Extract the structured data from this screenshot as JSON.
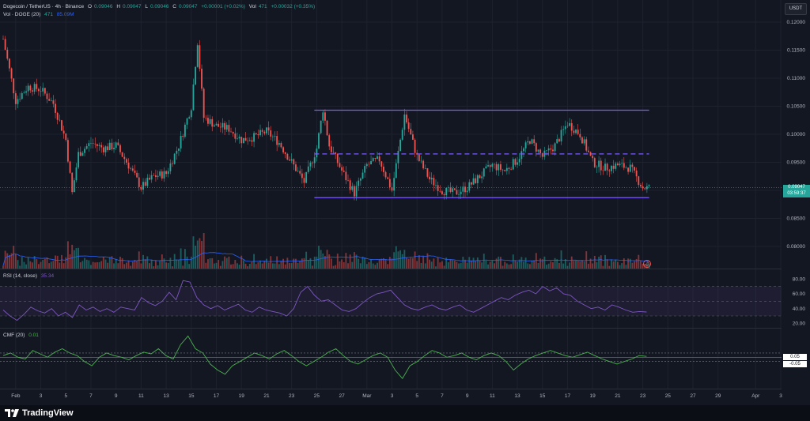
{
  "header": {
    "symbol_line": "Dogecoin / TetherUS · 4h · Binance",
    "open_label": "O",
    "open": "0.09046",
    "high_label": "H",
    "high": "0.09047",
    "low_label": "L",
    "low": "0.09046",
    "close_label": "C",
    "close": "0.09047",
    "change": "+0.00001 (+0.02%)",
    "vol_label": "Vol",
    "vol": "471",
    "vol_change": "+0.00032 (+0.35%)",
    "volume_indicator_label": "Vol · DOGE (20)",
    "volume_value": "471",
    "volume_ma_value": "85.09M"
  },
  "currency_button": "USDT",
  "price_tag": {
    "price": "0.09047",
    "countdown": "03:59:37"
  },
  "rsi_header": {
    "label": "RSI (14, close)",
    "value": "35.34"
  },
  "cmf_header": {
    "label": "CMF (20)",
    "value": "0.01"
  },
  "footer": {
    "brand": "TradingView"
  },
  "colors": {
    "background": "#131722",
    "up": "#26a69a",
    "down": "#ef5350",
    "channel": "#7b5cff",
    "rsi_line": "#7e57c2",
    "cmf_line": "#4caf50",
    "volume_ma": "#2962ff"
  },
  "chart_data": [
    {
      "type": "candlestick",
      "title": "Dogecoin / TetherUS · 4h · Binance",
      "x_tick_labels": [
        "Feb",
        "3",
        "5",
        "7",
        "9",
        "11",
        "13",
        "15",
        "17",
        "19",
        "21",
        "23",
        "25",
        "27",
        "Mar",
        "3",
        "5",
        "7",
        "9",
        "11",
        "13",
        "15",
        "17",
        "19",
        "21",
        "23",
        "25",
        "27",
        "29",
        "Apr",
        "3"
      ],
      "y_tick_labels": [
        "0.12000",
        "0.11500",
        "0.11000",
        "0.10500",
        "0.10000",
        "0.09500",
        "0.09000",
        "0.08500",
        "0.08000"
      ],
      "ylim": [
        0.0775,
        0.1212
      ],
      "last_price": 0.09047,
      "close_path": [
        [
          "Jan 31",
          0.117
        ],
        [
          "Feb 1",
          0.106
        ],
        [
          "Feb 2",
          0.1085
        ],
        [
          "Feb 3",
          0.108
        ],
        [
          "Feb 4",
          0.1055
        ],
        [
          "Feb 5",
          0.099
        ],
        [
          "Feb 5",
          0.0895
        ],
        [
          "Feb 6",
          0.0965
        ],
        [
          "Feb 7",
          0.0985
        ],
        [
          "Feb 8",
          0.0975
        ],
        [
          "Feb 9",
          0.098
        ],
        [
          "Feb 10",
          0.0945
        ],
        [
          "Feb 11",
          0.0905
        ],
        [
          "Feb 12",
          0.0925
        ],
        [
          "Feb 13",
          0.093
        ],
        [
          "Feb 14",
          0.098
        ],
        [
          "Feb 15",
          0.105
        ],
        [
          "Feb 15",
          0.1165
        ],
        [
          "Feb 16",
          0.103
        ],
        [
          "Feb 17",
          0.1015
        ],
        [
          "Feb 18",
          0.101
        ],
        [
          "Feb 19",
          0.099
        ],
        [
          "Feb 20",
          0.0995
        ],
        [
          "Feb 21",
          0.1005
        ],
        [
          "Feb 22",
          0.0985
        ],
        [
          "Feb 23",
          0.095
        ],
        [
          "Feb 24",
          0.0915
        ],
        [
          "Feb 25",
          0.0975
        ],
        [
          "Feb 25",
          0.1045
        ],
        [
          "Feb 26",
          0.098
        ],
        [
          "Feb 27",
          0.0935
        ],
        [
          "Feb 28",
          0.0895
        ],
        [
          "Mar 1",
          0.0945
        ],
        [
          "Mar 2",
          0.0955
        ],
        [
          "Mar 3",
          0.09
        ],
        [
          "Mar 4",
          0.1035
        ],
        [
          "Mar 5",
          0.096
        ],
        [
          "Mar 6",
          0.092
        ],
        [
          "Mar 7",
          0.09
        ],
        [
          "Mar 8",
          0.0895
        ],
        [
          "Mar 9",
          0.0905
        ],
        [
          "Mar 10",
          0.0925
        ],
        [
          "Mar 11",
          0.0945
        ],
        [
          "Mar 12",
          0.0935
        ],
        [
          "Mar 13",
          0.0955
        ],
        [
          "Mar 14",
          0.099
        ],
        [
          "Mar 15",
          0.096
        ],
        [
          "Mar 16",
          0.098
        ],
        [
          "Mar 17",
          0.102
        ],
        [
          "Mar 18",
          0.1
        ],
        [
          "Mar 19",
          0.095
        ],
        [
          "Mar 20",
          0.094
        ],
        [
          "Mar 21",
          0.0945
        ],
        [
          "Mar 22",
          0.094
        ],
        [
          "Mar 23",
          0.0905
        ],
        [
          "Mar 23",
          0.09047
        ]
      ],
      "channel": {
        "upper": 0.1043,
        "middle": 0.0965,
        "lower": 0.0887,
        "from": "Feb 25",
        "to": "Mar 23"
      },
      "volume": {
        "name": "Vol · DOGE (20)",
        "last": "471",
        "ma_last": "85.09M"
      }
    },
    {
      "type": "line",
      "title": "RSI (14, close)",
      "last": 35.34,
      "y_tick_labels": [
        "80.00",
        "60.00",
        "40.00",
        "20.00"
      ],
      "levels": [
        70,
        50,
        30
      ],
      "ylim": [
        15,
        90
      ],
      "values": [
        38,
        30,
        24,
        32,
        42,
        37,
        34,
        40,
        30,
        35,
        28,
        45,
        38,
        42,
        36,
        40,
        35,
        42,
        40,
        38,
        55,
        48,
        44,
        50,
        62,
        52,
        78,
        76,
        55,
        45,
        40,
        44,
        38,
        42,
        46,
        38,
        35,
        42,
        38,
        36,
        34,
        30,
        40,
        62,
        70,
        58,
        50,
        52,
        45,
        38,
        36,
        40,
        48,
        55,
        60,
        62,
        65,
        55,
        45,
        40,
        38,
        42,
        45,
        40,
        38,
        42,
        45,
        38,
        35,
        40,
        45,
        50,
        55,
        52,
        58,
        62,
        65,
        60,
        70,
        64,
        68,
        60,
        58,
        50,
        45,
        40,
        42,
        38,
        45,
        42,
        38,
        35,
        36,
        35.34
      ]
    },
    {
      "type": "line",
      "title": "CMF (20)",
      "last": 0.01,
      "right_labels": [
        "0.05",
        "-0.05"
      ],
      "levels": [
        0.05,
        0,
        -0.05
      ],
      "ylim": [
        -0.35,
        0.3
      ],
      "values": [
        0.02,
        0.05,
        0.0,
        -0.02,
        0.08,
        0.04,
        0.0,
        0.06,
        0.1,
        0.05,
        0.02,
        -0.05,
        -0.1,
        0.0,
        0.05,
        0.02,
        0.0,
        -0.03,
        0.02,
        0.06,
        0.04,
        0.1,
        0.02,
        -0.02,
        0.15,
        0.25,
        0.1,
        0.05,
        -0.08,
        -0.15,
        -0.2,
        -0.1,
        -0.05,
        0.0,
        0.05,
        0.02,
        -0.02,
        0.04,
        0.08,
        0.02,
        -0.05,
        -0.1,
        -0.05,
        0.0,
        0.06,
        0.1,
        0.02,
        -0.05,
        -0.08,
        -0.03,
        0.02,
        0.05,
        0.0,
        -0.15,
        -0.25,
        -0.1,
        -0.05,
        0.02,
        0.08,
        0.05,
        0.0,
        0.02,
        0.05,
        0.0,
        -0.03,
        0.02,
        0.05,
        0.02,
        -0.05,
        -0.15,
        -0.08,
        -0.02,
        0.02,
        0.05,
        0.08,
        0.05,
        0.02,
        0.0,
        0.03,
        0.06,
        0.02,
        -0.02,
        -0.05,
        -0.08,
        -0.05,
        -0.02,
        0.02,
        0.01
      ]
    }
  ]
}
